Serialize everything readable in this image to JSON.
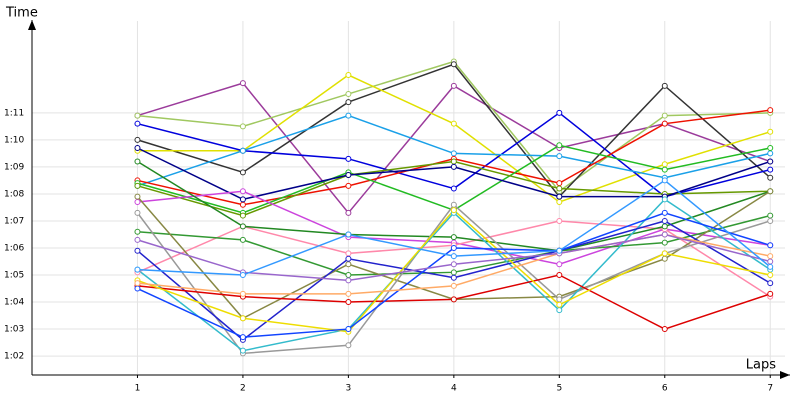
{
  "chart_data": {
    "type": "line",
    "y_label": "Time",
    "x_label": "Laps",
    "xlim": [
      0,
      7.14
    ],
    "xticks": [
      1,
      2,
      3,
      4,
      5,
      6,
      7
    ],
    "ylim": [
      61.3,
      74.4
    ],
    "yticks": [
      {
        "value": 62,
        "label": "1:02"
      },
      {
        "value": 63,
        "label": "1:03"
      },
      {
        "value": 64,
        "label": "1:04"
      },
      {
        "value": 65,
        "label": "1:05"
      },
      {
        "value": 66,
        "label": "1:06"
      },
      {
        "value": 67,
        "label": "1:07"
      },
      {
        "value": 68,
        "label": "1:08"
      },
      {
        "value": 69,
        "label": "1:09"
      },
      {
        "value": 70,
        "label": "1:10"
      },
      {
        "value": 71,
        "label": "1:11"
      }
    ],
    "grid": true,
    "x": [
      1,
      2,
      3,
      4,
      5,
      6,
      7
    ],
    "series": [
      {
        "color": "#9b3b9b",
        "values": [
          70.9,
          72.1,
          67.3,
          72.0,
          69.7,
          70.6,
          69.2
        ]
      },
      {
        "color": "#a0c860",
        "values": [
          70.9,
          70.5,
          71.7,
          72.9,
          68.1,
          70.9,
          71.0
        ]
      },
      {
        "color": "#333333",
        "values": [
          70.0,
          68.8,
          71.4,
          72.8,
          67.9,
          72.0,
          68.6
        ]
      },
      {
        "color": "#e0e000",
        "values": [
          69.6,
          69.6,
          72.4,
          70.6,
          67.7,
          69.1,
          70.3
        ]
      },
      {
        "color": "#0000dd",
        "values": [
          70.6,
          69.6,
          69.3,
          68.2,
          71.0,
          67.9,
          68.9
        ]
      },
      {
        "color": "#1aa0e8",
        "values": [
          68.3,
          69.6,
          70.9,
          69.5,
          69.4,
          68.6,
          69.5
        ]
      },
      {
        "color": "#ee1100",
        "values": [
          68.5,
          67.6,
          68.3,
          69.3,
          68.4,
          70.6,
          71.1
        ]
      },
      {
        "color": "#22bb22",
        "values": [
          68.4,
          67.3,
          68.8,
          67.4,
          69.8,
          68.9,
          69.7
        ]
      },
      {
        "color": "#669900",
        "values": [
          68.3,
          67.2,
          68.7,
          69.2,
          68.2,
          68.0,
          68.1
        ]
      },
      {
        "color": "#000088",
        "values": [
          69.7,
          67.8,
          68.7,
          69.0,
          67.9,
          67.9,
          69.2
        ]
      },
      {
        "color": "#cc44dd",
        "values": [
          67.7,
          68.1,
          66.4,
          66.2,
          65.4,
          66.7,
          66.1
        ]
      },
      {
        "color": "#ff88aa",
        "values": [
          65.1,
          66.8,
          65.8,
          66.1,
          67.0,
          66.7,
          64.2
        ]
      },
      {
        "color": "#339933",
        "values": [
          66.6,
          66.3,
          65.0,
          65.1,
          65.9,
          66.2,
          67.2
        ]
      },
      {
        "color": "#228822",
        "values": [
          69.2,
          66.8,
          66.5,
          66.4,
          65.9,
          66.8,
          68.1
        ]
      },
      {
        "color": "#888844",
        "values": [
          67.9,
          63.4,
          65.4,
          64.1,
          64.2,
          65.6,
          68.1
        ]
      },
      {
        "color": "#999999",
        "values": [
          67.3,
          62.1,
          62.4,
          67.6,
          64.1,
          65.8,
          67.0
        ]
      },
      {
        "color": "#33bbcc",
        "values": [
          65.2,
          62.2,
          63.0,
          67.3,
          63.7,
          67.8,
          65.2
        ]
      },
      {
        "color": "#2222cc",
        "values": [
          65.9,
          62.6,
          65.6,
          64.9,
          65.9,
          67.0,
          64.7
        ]
      },
      {
        "color": "#dd0000",
        "values": [
          64.6,
          64.2,
          64.0,
          64.1,
          65.0,
          63.0,
          64.3
        ]
      },
      {
        "color": "#eedd00",
        "values": [
          64.8,
          63.4,
          62.9,
          67.4,
          63.9,
          65.8,
          65.0
        ]
      },
      {
        "color": "#1144ff",
        "values": [
          64.5,
          62.7,
          63.0,
          66.0,
          65.9,
          67.3,
          66.1
        ]
      },
      {
        "color": "#ffaa66",
        "values": [
          64.7,
          64.3,
          64.3,
          64.6,
          65.8,
          66.5,
          65.7
        ]
      },
      {
        "color": "#9966cc",
        "values": [
          66.3,
          65.1,
          64.8,
          65.4,
          65.8,
          66.5,
          65.5
        ]
      },
      {
        "color": "#3399ff",
        "values": [
          65.2,
          65.0,
          66.5,
          65.7,
          65.9,
          68.5,
          65.3
        ]
      }
    ]
  }
}
